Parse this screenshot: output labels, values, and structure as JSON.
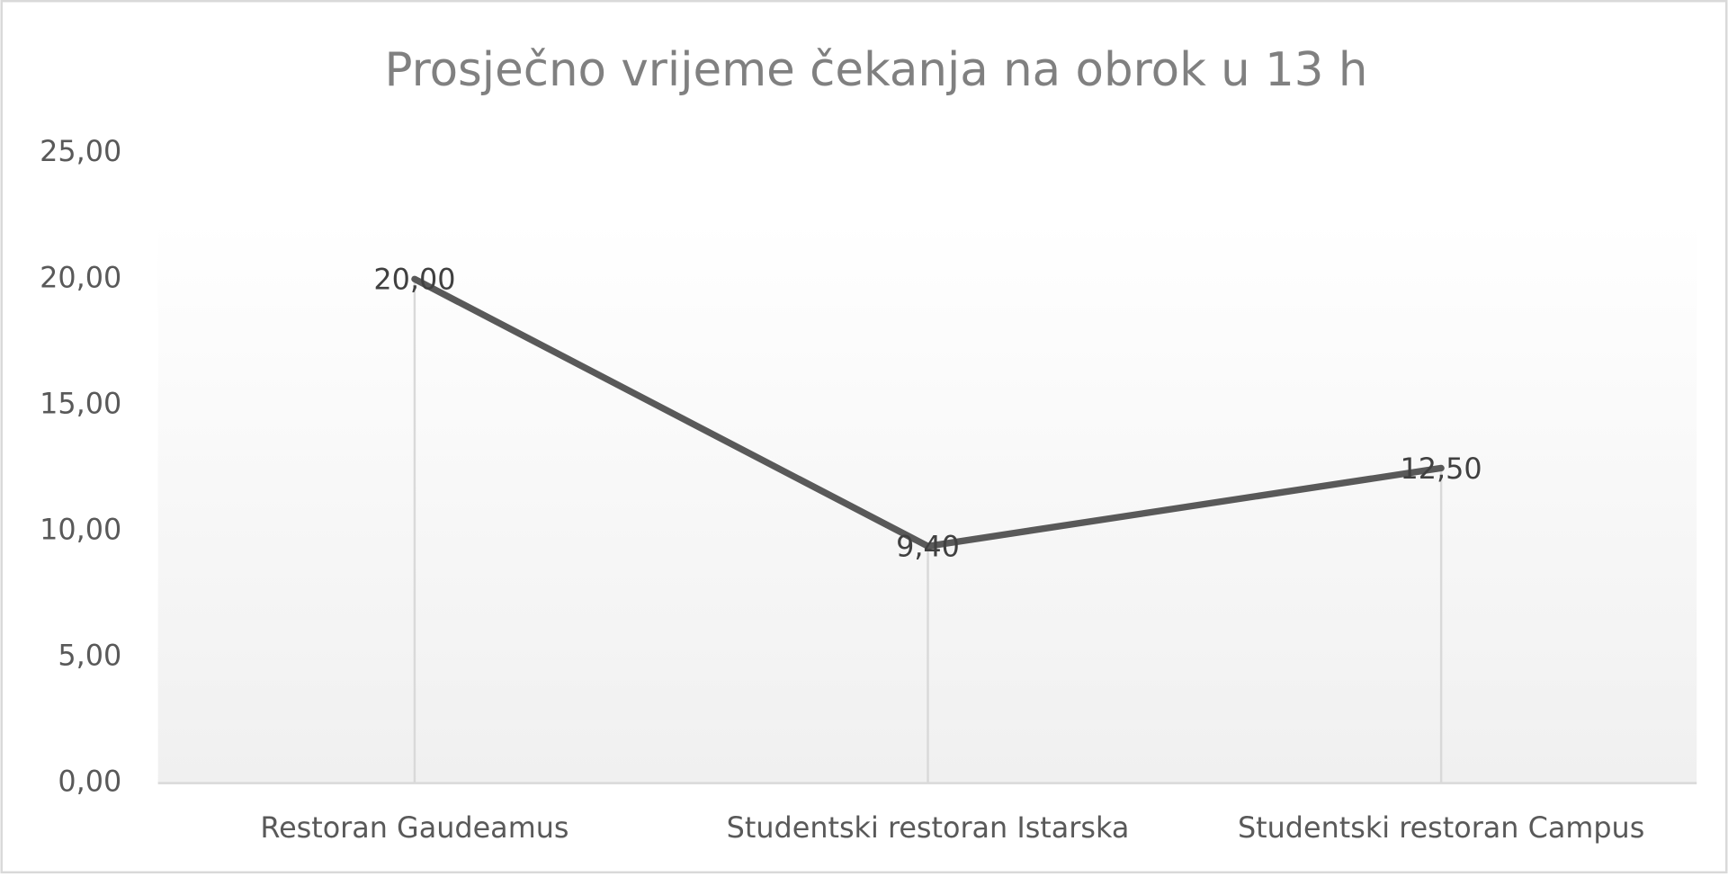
{
  "chart_data": {
    "type": "line",
    "title": "Prosječno vrijeme čekanja na obrok u 13 h",
    "categories": [
      "Restoran Gaudeamus",
      "Studentski restoran Istarska",
      "Studentski restoran Campus"
    ],
    "values": [
      20,
      9.4,
      12.5
    ],
    "value_labels": [
      "20,00",
      "9,40",
      "12,50"
    ],
    "color": "#595959",
    "ylim": [
      0,
      25
    ],
    "yticks": [
      {
        "value": 0,
        "label": "0,00"
      },
      {
        "value": 5,
        "label": "5,00"
      },
      {
        "value": 10,
        "label": "10,00"
      },
      {
        "value": 15,
        "label": "15,00"
      },
      {
        "value": 20,
        "label": "20,00"
      },
      {
        "value": 25,
        "label": "25,00"
      }
    ],
    "grid": false,
    "drop_lines": true
  }
}
